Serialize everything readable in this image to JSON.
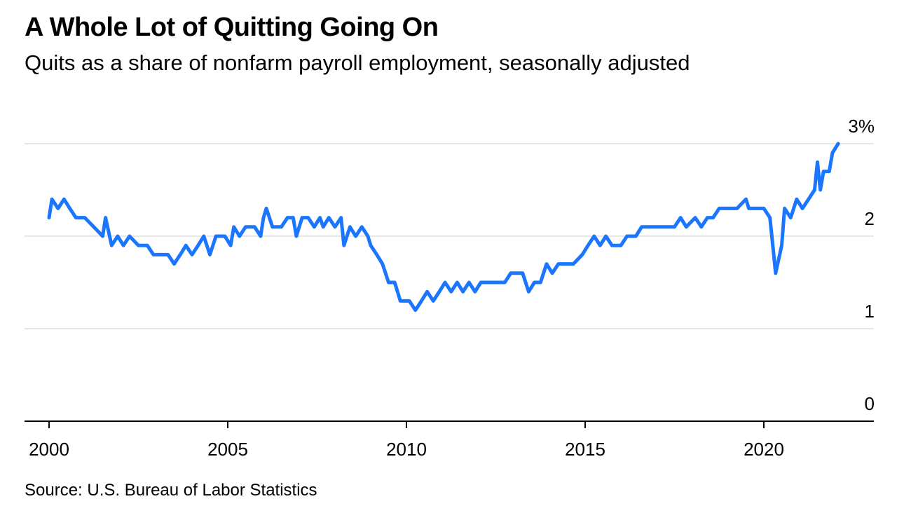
{
  "chart_data": {
    "type": "line",
    "title": "A Whole Lot of Quitting Going On",
    "subtitle": "Quits as a share of nonfarm payroll employment, seasonally adjusted",
    "source": "Source: U.S. Bureau of Labor Statistics",
    "xlabel": "",
    "ylabel": "",
    "xlim": [
      2000,
      2022.5
    ],
    "ylim": [
      0,
      3
    ],
    "x_ticks": [
      {
        "value": 2000,
        "label": "2000"
      },
      {
        "value": 2005,
        "label": "2005"
      },
      {
        "value": 2010,
        "label": "2010"
      },
      {
        "value": 2015,
        "label": "2015"
      },
      {
        "value": 2020,
        "label": "2020"
      }
    ],
    "y_ticks": [
      {
        "value": 0,
        "label": "0"
      },
      {
        "value": 1,
        "label": "1"
      },
      {
        "value": 2,
        "label": "2"
      },
      {
        "value": 3,
        "label": "3%"
      }
    ],
    "grid": true,
    "y_axis_position": "right",
    "line_color": "#1a75ff",
    "series": [
      {
        "points": [
          [
            2000.0,
            2.2
          ],
          [
            2000.08,
            2.4
          ],
          [
            2000.25,
            2.3
          ],
          [
            2000.42,
            2.4
          ],
          [
            2000.58,
            2.3
          ],
          [
            2000.75,
            2.2
          ],
          [
            2001.0,
            2.2
          ],
          [
            2001.25,
            2.1
          ],
          [
            2001.5,
            2.0
          ],
          [
            2001.58,
            2.2
          ],
          [
            2001.75,
            1.9
          ],
          [
            2001.92,
            2.0
          ],
          [
            2002.08,
            1.9
          ],
          [
            2002.25,
            2.0
          ],
          [
            2002.5,
            1.9
          ],
          [
            2002.75,
            1.9
          ],
          [
            2002.92,
            1.8
          ],
          [
            2003.08,
            1.8
          ],
          [
            2003.33,
            1.8
          ],
          [
            2003.5,
            1.7
          ],
          [
            2003.67,
            1.8
          ],
          [
            2003.83,
            1.9
          ],
          [
            2004.0,
            1.8
          ],
          [
            2004.17,
            1.9
          ],
          [
            2004.33,
            2.0
          ],
          [
            2004.5,
            1.8
          ],
          [
            2004.67,
            2.0
          ],
          [
            2004.92,
            2.0
          ],
          [
            2005.08,
            1.9
          ],
          [
            2005.17,
            2.1
          ],
          [
            2005.33,
            2.0
          ],
          [
            2005.5,
            2.1
          ],
          [
            2005.75,
            2.1
          ],
          [
            2005.92,
            2.0
          ],
          [
            2006.0,
            2.2
          ],
          [
            2006.08,
            2.3
          ],
          [
            2006.25,
            2.1
          ],
          [
            2006.5,
            2.1
          ],
          [
            2006.67,
            2.2
          ],
          [
            2006.83,
            2.2
          ],
          [
            2006.92,
            2.0
          ],
          [
            2007.08,
            2.2
          ],
          [
            2007.25,
            2.2
          ],
          [
            2007.42,
            2.1
          ],
          [
            2007.58,
            2.2
          ],
          [
            2007.67,
            2.1
          ],
          [
            2007.83,
            2.2
          ],
          [
            2008.0,
            2.1
          ],
          [
            2008.17,
            2.2
          ],
          [
            2008.25,
            1.9
          ],
          [
            2008.42,
            2.1
          ],
          [
            2008.58,
            2.0
          ],
          [
            2008.75,
            2.1
          ],
          [
            2008.92,
            2.0
          ],
          [
            2009.0,
            1.9
          ],
          [
            2009.17,
            1.8
          ],
          [
            2009.33,
            1.7
          ],
          [
            2009.5,
            1.5
          ],
          [
            2009.67,
            1.5
          ],
          [
            2009.83,
            1.3
          ],
          [
            2010.08,
            1.3
          ],
          [
            2010.25,
            1.2
          ],
          [
            2010.42,
            1.3
          ],
          [
            2010.58,
            1.4
          ],
          [
            2010.75,
            1.3
          ],
          [
            2010.92,
            1.4
          ],
          [
            2011.08,
            1.5
          ],
          [
            2011.25,
            1.4
          ],
          [
            2011.42,
            1.5
          ],
          [
            2011.58,
            1.4
          ],
          [
            2011.75,
            1.5
          ],
          [
            2011.92,
            1.4
          ],
          [
            2012.08,
            1.5
          ],
          [
            2012.25,
            1.5
          ],
          [
            2012.5,
            1.5
          ],
          [
            2012.75,
            1.5
          ],
          [
            2012.92,
            1.6
          ],
          [
            2013.08,
            1.6
          ],
          [
            2013.25,
            1.6
          ],
          [
            2013.42,
            1.4
          ],
          [
            2013.58,
            1.5
          ],
          [
            2013.75,
            1.5
          ],
          [
            2013.92,
            1.7
          ],
          [
            2014.08,
            1.6
          ],
          [
            2014.25,
            1.7
          ],
          [
            2014.42,
            1.7
          ],
          [
            2014.67,
            1.7
          ],
          [
            2014.92,
            1.8
          ],
          [
            2015.08,
            1.9
          ],
          [
            2015.25,
            2.0
          ],
          [
            2015.42,
            1.9
          ],
          [
            2015.58,
            2.0
          ],
          [
            2015.75,
            1.9
          ],
          [
            2016.0,
            1.9
          ],
          [
            2016.17,
            2.0
          ],
          [
            2016.42,
            2.0
          ],
          [
            2016.58,
            2.1
          ],
          [
            2016.75,
            2.1
          ],
          [
            2016.92,
            2.1
          ],
          [
            2017.25,
            2.1
          ],
          [
            2017.5,
            2.1
          ],
          [
            2017.67,
            2.2
          ],
          [
            2017.83,
            2.1
          ],
          [
            2018.08,
            2.2
          ],
          [
            2018.25,
            2.1
          ],
          [
            2018.42,
            2.2
          ],
          [
            2018.58,
            2.2
          ],
          [
            2018.75,
            2.3
          ],
          [
            2019.0,
            2.3
          ],
          [
            2019.25,
            2.3
          ],
          [
            2019.5,
            2.4
          ],
          [
            2019.58,
            2.3
          ],
          [
            2019.83,
            2.3
          ],
          [
            2020.0,
            2.3
          ],
          [
            2020.17,
            2.2
          ],
          [
            2020.33,
            1.6
          ],
          [
            2020.5,
            1.9
          ],
          [
            2020.58,
            2.3
          ],
          [
            2020.75,
            2.2
          ],
          [
            2020.92,
            2.4
          ],
          [
            2021.08,
            2.3
          ],
          [
            2021.25,
            2.4
          ],
          [
            2021.42,
            2.5
          ],
          [
            2021.5,
            2.8
          ],
          [
            2021.58,
            2.5
          ],
          [
            2021.67,
            2.7
          ],
          [
            2021.83,
            2.7
          ],
          [
            2021.92,
            2.9
          ],
          [
            2022.08,
            3.0
          ]
        ]
      }
    ]
  }
}
